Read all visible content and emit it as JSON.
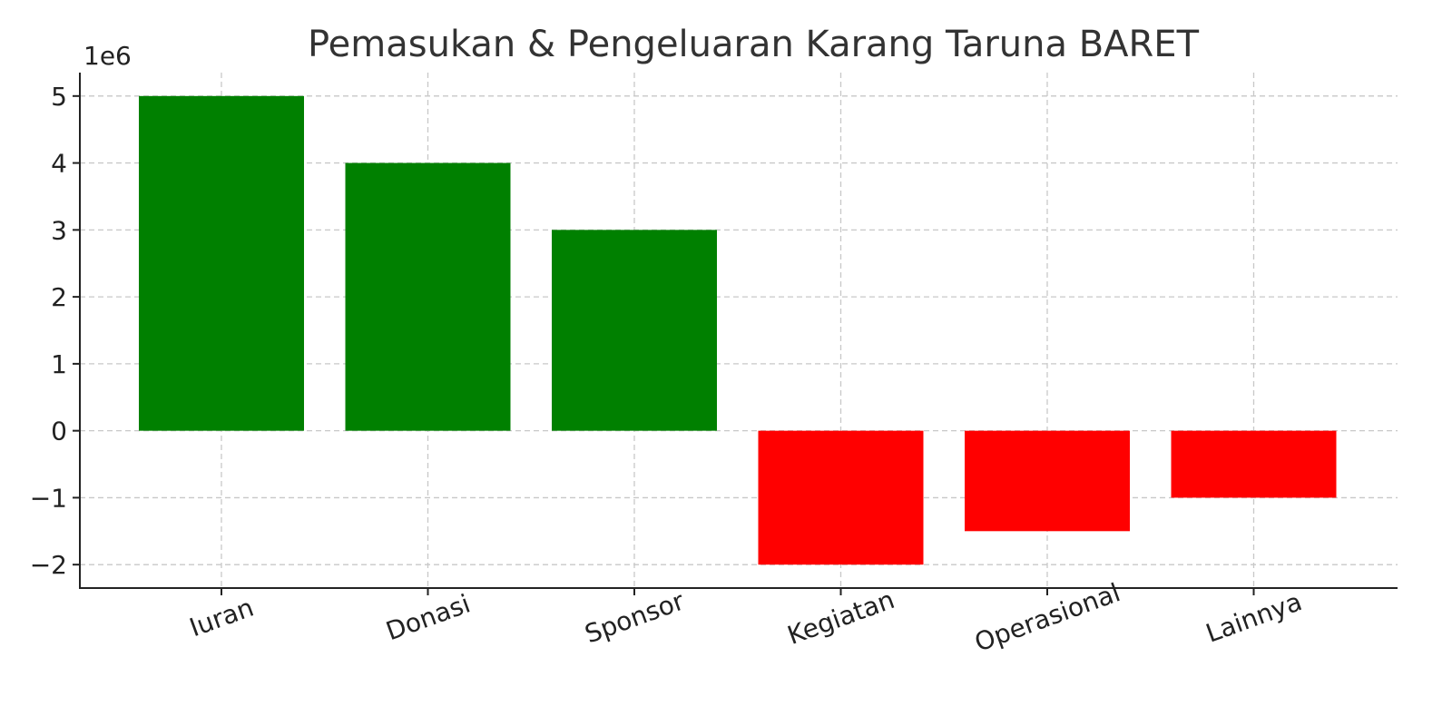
{
  "chart_data": {
    "type": "bar",
    "title": "Pemasukan & Pengeluaran Karang Taruna BARET",
    "xlabel": "",
    "ylabel": "",
    "y_offset_label": "1e6",
    "categories": [
      "Iuran",
      "Donasi",
      "Sponsor",
      "Kegiatan",
      "Operasional",
      "Lainnya"
    ],
    "values": [
      5000000,
      4000000,
      3000000,
      -2000000,
      -1500000,
      -1000000
    ],
    "bar_colors": [
      "#008000",
      "#008000",
      "#008000",
      "#ff0000",
      "#ff0000",
      "#ff0000"
    ],
    "ylim": [
      -2350000,
      5350000
    ],
    "y_ticks": [
      5000000,
      4000000,
      3000000,
      2000000,
      1000000,
      0,
      -1000000,
      -2000000
    ],
    "y_tick_labels": [
      "5",
      "4",
      "3",
      "2",
      "1",
      "0",
      "−1",
      "−2"
    ],
    "grid": true,
    "legend": "none"
  }
}
